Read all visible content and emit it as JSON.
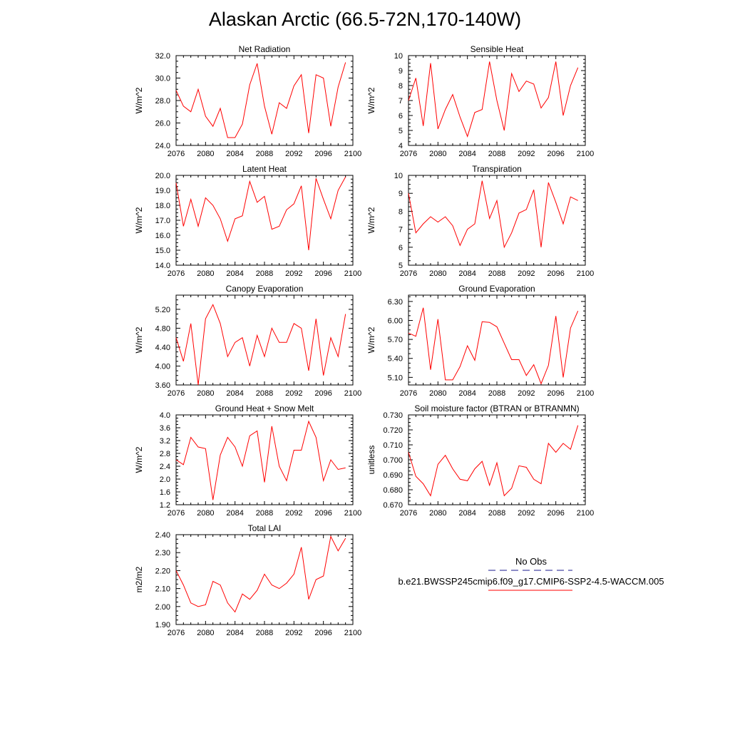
{
  "title": "Alaskan Arctic (66.5-72N,170-140W)",
  "legend": {
    "entries": [
      {
        "label": "No Obs",
        "color": "#1a1a8c",
        "style": "dashed"
      },
      {
        "label": "b.e21.BWSSP245cmip6.f09_g17.CMIP6-SSP2-4.5-WACCM.005",
        "color": "#ff0000",
        "style": "solid"
      }
    ]
  },
  "colors": {
    "series": "#ff0000",
    "axis": "#000000"
  },
  "chart_data": [
    {
      "type": "line",
      "title": "Net Radiation",
      "ylabel": "W/m^2",
      "x": [
        2076,
        2077,
        2078,
        2079,
        2080,
        2081,
        2082,
        2083,
        2084,
        2085,
        2086,
        2087,
        2088,
        2089,
        2090,
        2091,
        2092,
        2093,
        2094,
        2095,
        2096,
        2097,
        2098,
        2099
      ],
      "values": [
        28.9,
        27.5,
        27.0,
        29.0,
        26.6,
        25.7,
        27.3,
        24.7,
        24.7,
        25.9,
        29.4,
        31.3,
        27.5,
        25.0,
        27.8,
        27.3,
        29.3,
        30.3,
        25.1,
        30.3,
        30.0,
        25.7,
        29.2,
        31.4
      ],
      "xlim": [
        2076,
        2100
      ],
      "ylim": [
        24.0,
        32.0
      ],
      "xticks": [
        "2076",
        "2080",
        "2084",
        "2088",
        "2092",
        "2096",
        "2100"
      ],
      "yticks": [
        "24.0",
        "26.0",
        "28.0",
        "30.0",
        "32.0"
      ]
    },
    {
      "type": "line",
      "title": "Sensible Heat",
      "ylabel": "W/m^2",
      "x": [
        2076,
        2077,
        2078,
        2079,
        2080,
        2081,
        2082,
        2083,
        2084,
        2085,
        2086,
        2087,
        2088,
        2089,
        2090,
        2091,
        2092,
        2093,
        2094,
        2095,
        2096,
        2097,
        2098,
        2099
      ],
      "values": [
        7.0,
        8.5,
        5.3,
        9.5,
        5.1,
        6.4,
        7.4,
        5.9,
        4.6,
        6.2,
        6.4,
        9.6,
        7.0,
        5.0,
        8.8,
        7.6,
        8.3,
        8.1,
        6.5,
        7.2,
        9.6,
        6.0,
        8.0,
        9.2
      ],
      "xlim": [
        2076,
        2100
      ],
      "ylim": [
        4,
        10
      ],
      "xticks": [
        "2076",
        "2080",
        "2084",
        "2088",
        "2092",
        "2096",
        "2100"
      ],
      "yticks": [
        "4",
        "5",
        "6",
        "7",
        "8",
        "9",
        "10"
      ]
    },
    {
      "type": "line",
      "title": "Latent Heat",
      "ylabel": "W/m^2",
      "x": [
        2076,
        2077,
        2078,
        2079,
        2080,
        2081,
        2082,
        2083,
        2084,
        2085,
        2086,
        2087,
        2088,
        2089,
        2090,
        2091,
        2092,
        2093,
        2094,
        2095,
        2096,
        2097,
        2098,
        2099
      ],
      "values": [
        19.5,
        16.6,
        18.4,
        16.6,
        18.5,
        18.0,
        17.1,
        15.6,
        17.1,
        17.3,
        19.6,
        18.2,
        18.6,
        16.4,
        16.6,
        17.7,
        18.1,
        19.3,
        15.0,
        19.8,
        18.4,
        17.1,
        19.0,
        19.9
      ],
      "xlim": [
        2076,
        2100
      ],
      "ylim": [
        14.0,
        20.0
      ],
      "xticks": [
        "2076",
        "2080",
        "2084",
        "2088",
        "2092",
        "2096",
        "2100"
      ],
      "yticks": [
        "14.0",
        "15.0",
        "16.0",
        "17.0",
        "18.0",
        "19.0",
        "20.0"
      ]
    },
    {
      "type": "line",
      "title": "Transpiration",
      "ylabel": "W/m^2",
      "x": [
        2076,
        2077,
        2078,
        2079,
        2080,
        2081,
        2082,
        2083,
        2084,
        2085,
        2086,
        2087,
        2088,
        2089,
        2090,
        2091,
        2092,
        2093,
        2094,
        2095,
        2096,
        2097,
        2098,
        2099
      ],
      "values": [
        9.0,
        6.8,
        7.3,
        7.7,
        7.4,
        7.7,
        7.2,
        6.1,
        7.0,
        7.3,
        9.7,
        7.6,
        8.6,
        6.0,
        6.8,
        7.9,
        8.1,
        9.2,
        6.0,
        9.6,
        8.5,
        7.3,
        8.8,
        8.6
      ],
      "xlim": [
        2076,
        2100
      ],
      "ylim": [
        5,
        10
      ],
      "xticks": [
        "2076",
        "2080",
        "2084",
        "2088",
        "2092",
        "2096",
        "2100"
      ],
      "yticks": [
        "5",
        "6",
        "7",
        "8",
        "9",
        "10"
      ]
    },
    {
      "type": "line",
      "title": "Canopy Evaporation",
      "ylabel": "W/m^2",
      "x": [
        2076,
        2077,
        2078,
        2079,
        2080,
        2081,
        2082,
        2083,
        2084,
        2085,
        2086,
        2087,
        2088,
        2089,
        2090,
        2091,
        2092,
        2093,
        2094,
        2095,
        2096,
        2097,
        2098,
        2099
      ],
      "values": [
        4.6,
        4.1,
        4.9,
        3.6,
        5.0,
        5.3,
        4.9,
        4.2,
        4.5,
        4.6,
        4.0,
        4.65,
        4.2,
        4.8,
        4.5,
        4.5,
        4.9,
        4.8,
        3.9,
        5.0,
        3.8,
        4.6,
        4.2,
        5.1
      ],
      "xlim": [
        2076,
        2100
      ],
      "ylim": [
        3.6,
        5.5
      ],
      "xticks": [
        "2076",
        "2080",
        "2084",
        "2088",
        "2092",
        "2096",
        "2100"
      ],
      "yticks": [
        "3.60",
        "4.00",
        "4.40",
        "4.80",
        "5.20"
      ]
    },
    {
      "type": "line",
      "title": "Ground Evaporation",
      "ylabel": "W/m^2",
      "x": [
        2076,
        2077,
        2078,
        2079,
        2080,
        2081,
        2082,
        2083,
        2084,
        2085,
        2086,
        2087,
        2088,
        2089,
        2090,
        2091,
        2092,
        2093,
        2094,
        2095,
        2096,
        2097,
        2098,
        2099
      ],
      "values": [
        5.8,
        5.75,
        6.2,
        5.22,
        6.02,
        5.06,
        5.06,
        5.27,
        5.6,
        5.37,
        5.98,
        5.97,
        5.9,
        5.64,
        5.38,
        5.38,
        5.13,
        5.3,
        5.0,
        5.29,
        6.07,
        5.1,
        5.88,
        6.15
      ],
      "xlim": [
        2076,
        2100
      ],
      "ylim": [
        4.98,
        6.4
      ],
      "xticks": [
        "2076",
        "2080",
        "2084",
        "2088",
        "2092",
        "2096",
        "2100"
      ],
      "yticks": [
        "5.10",
        "5.40",
        "5.70",
        "6.00",
        "6.30"
      ]
    },
    {
      "type": "line",
      "title": "Ground Heat + Snow Melt",
      "ylabel": "W/m^2",
      "x": [
        2076,
        2077,
        2078,
        2079,
        2080,
        2081,
        2082,
        2083,
        2084,
        2085,
        2086,
        2087,
        2088,
        2089,
        2090,
        2091,
        2092,
        2093,
        2094,
        2095,
        2096,
        2097,
        2098,
        2099
      ],
      "values": [
        2.6,
        2.45,
        3.3,
        3.0,
        2.95,
        1.35,
        2.75,
        3.3,
        3.0,
        2.4,
        3.35,
        3.5,
        1.9,
        3.65,
        2.4,
        1.95,
        2.9,
        2.9,
        3.8,
        3.3,
        1.95,
        2.6,
        2.3,
        2.35
      ],
      "xlim": [
        2076,
        2100
      ],
      "ylim": [
        1.2,
        4.0
      ],
      "xticks": [
        "2076",
        "2080",
        "2084",
        "2088",
        "2092",
        "2096",
        "2100"
      ],
      "yticks": [
        "1.2",
        "1.6",
        "2.0",
        "2.4",
        "2.8",
        "3.2",
        "3.6",
        "4.0"
      ]
    },
    {
      "type": "line",
      "title": "Soil moisture factor (BTRAN or BTRANMN)",
      "ylabel": "unitless",
      "x": [
        2076,
        2077,
        2078,
        2079,
        2080,
        2081,
        2082,
        2083,
        2084,
        2085,
        2086,
        2087,
        2088,
        2089,
        2090,
        2091,
        2092,
        2093,
        2094,
        2095,
        2096,
        2097,
        2098,
        2099
      ],
      "values": [
        0.705,
        0.689,
        0.684,
        0.676,
        0.697,
        0.703,
        0.694,
        0.687,
        0.686,
        0.694,
        0.699,
        0.683,
        0.698,
        0.676,
        0.681,
        0.696,
        0.695,
        0.687,
        0.684,
        0.711,
        0.705,
        0.711,
        0.707,
        0.723
      ],
      "xlim": [
        2076,
        2100
      ],
      "ylim": [
        0.67,
        0.73
      ],
      "xticks": [
        "2076",
        "2080",
        "2084",
        "2088",
        "2092",
        "2096",
        "2100"
      ],
      "yticks": [
        "0.670",
        "0.680",
        "0.690",
        "0.700",
        "0.710",
        "0.720",
        "0.730"
      ]
    },
    {
      "type": "line",
      "title": "Total LAI",
      "ylabel": "m2/m2",
      "x": [
        2076,
        2077,
        2078,
        2079,
        2080,
        2081,
        2082,
        2083,
        2084,
        2085,
        2086,
        2087,
        2088,
        2089,
        2090,
        2091,
        2092,
        2093,
        2094,
        2095,
        2096,
        2097,
        2098,
        2099
      ],
      "values": [
        2.2,
        2.12,
        2.02,
        2.0,
        2.01,
        2.14,
        2.12,
        2.02,
        1.97,
        2.07,
        2.04,
        2.09,
        2.18,
        2.12,
        2.1,
        2.13,
        2.18,
        2.33,
        2.04,
        2.15,
        2.17,
        2.39,
        2.31,
        2.38
      ],
      "xlim": [
        2076,
        2100
      ],
      "ylim": [
        1.9,
        2.4
      ],
      "xticks": [
        "2076",
        "2080",
        "2084",
        "2088",
        "2092",
        "2096",
        "2100"
      ],
      "yticks": [
        "1.90",
        "2.00",
        "2.10",
        "2.20",
        "2.30",
        "2.40"
      ]
    }
  ]
}
